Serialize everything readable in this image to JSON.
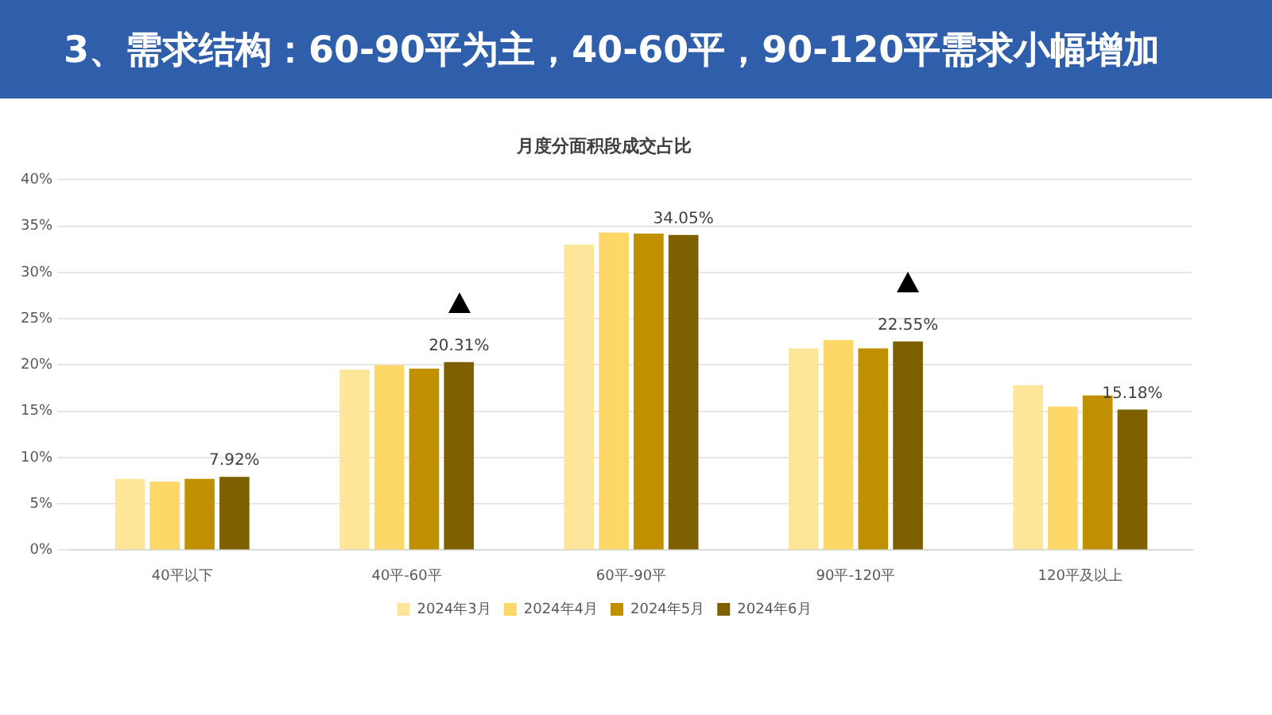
{
  "chart_data": {
    "type": "bar",
    "title": "3、需求结构：60-90平为主，40-60平，90-120平需求小幅增加",
    "subtitle": "月度分面积段成交占比",
    "categories": [
      "40平以下",
      "40平-60平",
      "60平-90平",
      "90平-120平",
      "120平及以上"
    ],
    "series": [
      {
        "name": "2024年3月",
        "color": "#fde59a",
        "values": [
          7.7,
          19.5,
          33.0,
          21.8,
          17.8
        ]
      },
      {
        "name": "2024年4月",
        "color": "#fdd768",
        "values": [
          7.4,
          20.0,
          34.3,
          22.7,
          15.5
        ]
      },
      {
        "name": "2024年5月",
        "color": "#c09000",
        "values": [
          7.7,
          19.6,
          34.2,
          21.8,
          16.7
        ]
      },
      {
        "name": "2024年6月",
        "color": "#7f6000",
        "values": [
          7.92,
          20.31,
          34.05,
          22.55,
          15.18
        ],
        "value_labels": [
          "7.92%",
          "20.31%",
          "34.05%",
          "22.55%",
          "15.18%"
        ]
      }
    ],
    "ylim": [
      0,
      40
    ],
    "yticks": [
      {
        "value": 0,
        "label": "0%"
      },
      {
        "value": 5,
        "label": "5%"
      },
      {
        "value": 10,
        "label": "10%"
      },
      {
        "value": 15,
        "label": "15%"
      },
      {
        "value": 20,
        "label": "20%"
      },
      {
        "value": 25,
        "label": "25%"
      },
      {
        "value": 30,
        "label": "30%"
      },
      {
        "value": 35,
        "label": "35%"
      },
      {
        "value": 40,
        "label": "40%"
      }
    ],
    "grid": "y",
    "legend": "bottom"
  }
}
